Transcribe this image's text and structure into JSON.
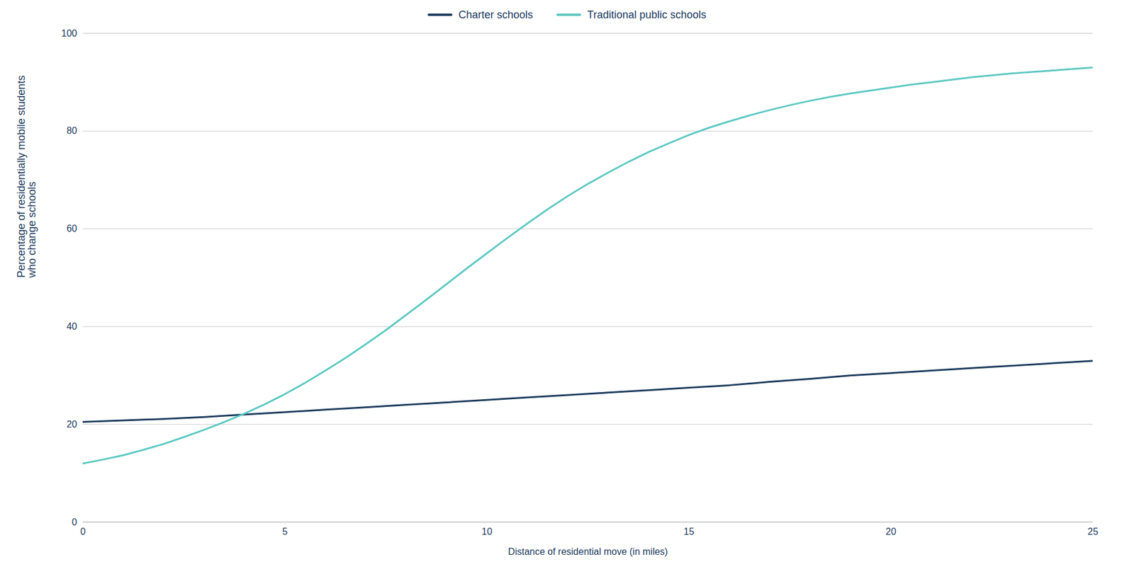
{
  "chart_data": {
    "type": "line",
    "xlabel": "Distance of residential move (in miles)",
    "ylabel": "Percentage of residentially mobile students\nwho change schools",
    "series": [
      {
        "name": "Charter schools",
        "color": "#1b3a5c",
        "x": [
          0,
          1,
          2,
          3,
          4,
          5,
          6,
          7,
          8,
          9,
          10,
          11,
          12,
          13,
          14,
          15,
          16,
          17,
          18,
          19,
          20,
          21,
          22,
          23,
          24,
          25
        ],
        "values": [
          20.5,
          20.8,
          21.1,
          21.5,
          22.0,
          22.5,
          23.0,
          23.5,
          24.0,
          24.5,
          25.0,
          25.5,
          26.0,
          26.5,
          27.0,
          27.5,
          28.0,
          28.7,
          29.3,
          30.0,
          30.5,
          31.0,
          31.5,
          32.0,
          32.5,
          33.0
        ]
      },
      {
        "name": "Traditional public schools",
        "color": "#5bc8c0",
        "x": [
          0,
          0.5,
          1,
          1.5,
          2,
          2.5,
          3,
          3.5,
          4,
          4.5,
          5,
          5.5,
          6,
          6.5,
          7,
          7.5,
          8,
          8.5,
          9,
          9.5,
          10,
          10.5,
          11,
          11.5,
          12,
          12.5,
          13,
          13.5,
          14,
          14.5,
          15,
          15.5,
          16,
          16.5,
          17,
          17.5,
          18,
          18.5,
          19,
          19.5,
          20,
          20.5,
          21,
          21.5,
          22,
          22.5,
          23,
          23.5,
          24,
          24.5,
          25
        ],
        "values": [
          12.0,
          12.8,
          13.7,
          14.8,
          16.0,
          17.4,
          18.9,
          20.5,
          22.2,
          24.1,
          26.2,
          28.5,
          31.0,
          33.6,
          36.4,
          39.3,
          42.4,
          45.5,
          48.7,
          51.9,
          55.0,
          58.1,
          61.1,
          64.0,
          66.7,
          69.2,
          71.5,
          73.7,
          75.7,
          77.5,
          79.2,
          80.7,
          82.0,
          83.2,
          84.3,
          85.3,
          86.2,
          87.0,
          87.7,
          88.3,
          88.9,
          89.5,
          90.0,
          90.5,
          91.0,
          91.4,
          91.8,
          92.1,
          92.4,
          92.7,
          93.0
        ]
      }
    ],
    "xlim": [
      0,
      25
    ],
    "ylim": [
      0,
      100
    ],
    "xticks": [
      0,
      5,
      10,
      15,
      20,
      25
    ],
    "yticks": [
      0,
      20,
      40,
      60,
      80,
      100
    ],
    "grid": "y",
    "legend": "top"
  }
}
